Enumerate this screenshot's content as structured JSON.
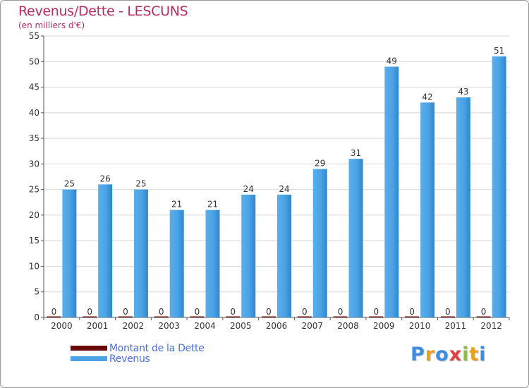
{
  "chart_data": {
    "type": "bar",
    "title": "Revenus/Dette - LESCUNS",
    "subtitle": "(en milliers d'€)",
    "categories": [
      "2000",
      "2001",
      "2002",
      "2003",
      "2004",
      "2005",
      "2006",
      "2007",
      "2008",
      "2009",
      "2010",
      "2011",
      "2012"
    ],
    "series": [
      {
        "name": "Montant de la Dette",
        "values": [
          0,
          0,
          0,
          0,
          0,
          0,
          0,
          0,
          0,
          0,
          0,
          0,
          0
        ],
        "color": "#6b0a0a"
      },
      {
        "name": "Revenus",
        "values": [
          25,
          26,
          25,
          21,
          21,
          24,
          24,
          29,
          31,
          49,
          42,
          43,
          51
        ],
        "color": "#4aa3e6"
      }
    ],
    "ylim": [
      0,
      55
    ],
    "yticks": [
      0,
      5,
      10,
      15,
      20,
      25,
      30,
      35,
      40,
      45,
      50,
      55
    ],
    "grid": true,
    "legend": "bottom-left"
  },
  "legend": {
    "debt_label": "Montant de la Dette",
    "revenue_label": "Revenus"
  },
  "logo": {
    "text": [
      "P",
      "r",
      "o",
      "x",
      "i",
      "t",
      "i"
    ],
    "colors": [
      "#3a8de0",
      "#e8a020",
      "#3a8de0",
      "#e04040",
      "#8ac040",
      "#e8a020",
      "#3a8de0"
    ]
  },
  "colors": {
    "title": "#b52d5e",
    "axis_text": "#333333",
    "grid": "#d8d8d8",
    "legend_text": "#4a6fd8"
  }
}
